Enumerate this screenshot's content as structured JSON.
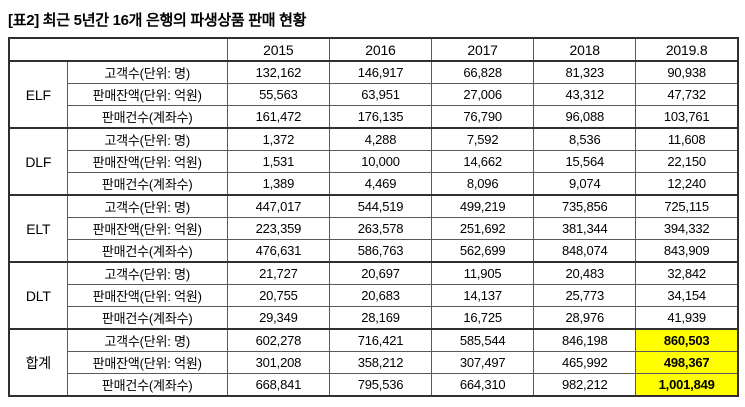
{
  "title": "[표2] 최근 5년간 16개 은행의 파생상품 판매 현황",
  "highlight_color": "#ffff00",
  "table": {
    "year_headers": [
      "2015",
      "2016",
      "2017",
      "2018",
      "2019.8"
    ],
    "groups": [
      {
        "name": "ELF",
        "rows": [
          {
            "label": "고객수(단위: 명)",
            "values": [
              "132,162",
              "146,917",
              "66,828",
              "81,323",
              "90,938"
            ]
          },
          {
            "label": "판매잔액(단위: 억원)",
            "values": [
              "55,563",
              "63,951",
              "27,006",
              "43,312",
              "47,732"
            ]
          },
          {
            "label": "판매건수(계좌수)",
            "values": [
              "161,472",
              "176,135",
              "76,790",
              "96,088",
              "103,761"
            ]
          }
        ]
      },
      {
        "name": "DLF",
        "rows": [
          {
            "label": "고객수(단위: 명)",
            "values": [
              "1,372",
              "4,288",
              "7,592",
              "8,536",
              "11,608"
            ]
          },
          {
            "label": "판매잔액(단위: 억원)",
            "values": [
              "1,531",
              "10,000",
              "14,662",
              "15,564",
              "22,150"
            ]
          },
          {
            "label": "판매건수(계좌수)",
            "values": [
              "1,389",
              "4,469",
              "8,096",
              "9,074",
              "12,240"
            ]
          }
        ]
      },
      {
        "name": "ELT",
        "rows": [
          {
            "label": "고객수(단위: 명)",
            "values": [
              "447,017",
              "544,519",
              "499,219",
              "735,856",
              "725,115"
            ]
          },
          {
            "label": "판매잔액(단위: 억원)",
            "values": [
              "223,359",
              "263,578",
              "251,692",
              "381,344",
              "394,332"
            ]
          },
          {
            "label": "판매건수(계좌수)",
            "values": [
              "476,631",
              "586,763",
              "562,699",
              "848,074",
              "843,909"
            ]
          }
        ]
      },
      {
        "name": "DLT",
        "rows": [
          {
            "label": "고객수(단위: 명)",
            "values": [
              "21,727",
              "20,697",
              "11,905",
              "20,483",
              "32,842"
            ]
          },
          {
            "label": "판매잔액(단위: 억원)",
            "values": [
              "20,755",
              "20,683",
              "14,137",
              "25,773",
              "34,154"
            ]
          },
          {
            "label": "판매건수(계좌수)",
            "values": [
              "29,349",
              "28,169",
              "16,725",
              "28,976",
              "41,939"
            ]
          }
        ]
      },
      {
        "name": "합계",
        "rows": [
          {
            "label": "고객수(단위: 명)",
            "values": [
              "602,278",
              "716,421",
              "585,544",
              "846,198",
              "860,503"
            ]
          },
          {
            "label": "판매잔액(단위: 억원)",
            "values": [
              "301,208",
              "358,212",
              "307,497",
              "465,992",
              "498,367"
            ]
          },
          {
            "label": "판매건수(계좌수)",
            "values": [
              "668,841",
              "795,536",
              "664,310",
              "982,212",
              "1,001,849"
            ]
          }
        ]
      }
    ]
  }
}
